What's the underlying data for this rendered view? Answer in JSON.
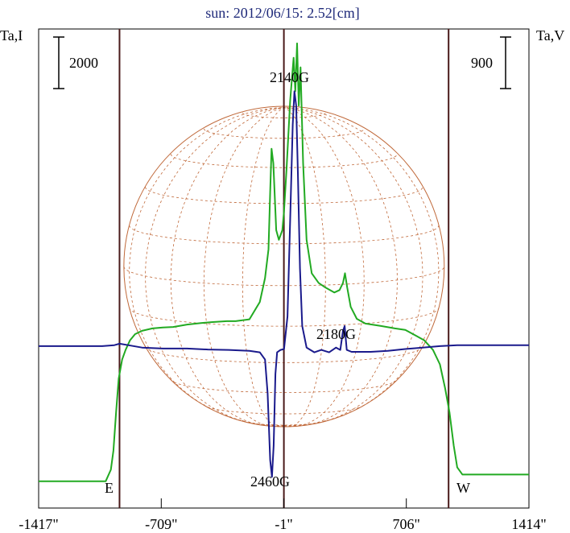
{
  "chart_data": {
    "type": "line",
    "title": "sun: 2012/06/15: 2.52[cm]",
    "left_axis_label": "Ta,I",
    "right_axis_label": "Ta,V",
    "xlim": [
      -1417,
      1414
    ],
    "x_ticks": [
      {
        "value": -1417,
        "label": "-1417\""
      },
      {
        "value": -709,
        "label": "-709\""
      },
      {
        "value": -1,
        "label": "-1\""
      },
      {
        "value": 706,
        "label": "706\""
      },
      {
        "value": 1414,
        "label": "1414\""
      }
    ],
    "scale_bar_left": "2000",
    "scale_bar_right": "900",
    "limb_markers": {
      "east": "E",
      "west": "W"
    },
    "vertical_lines_x": [
      -950,
      -1,
      950
    ],
    "solar_disk": {
      "radius_arcsec": 925,
      "grid": "heliographic-dashed"
    },
    "annotations": [
      {
        "label": "2140G",
        "x": 70
      },
      {
        "label": "2180G",
        "x": 340
      },
      {
        "label": "2460G",
        "x": -30
      }
    ],
    "series": [
      {
        "color": "#22aa22",
        "role": "intensity",
        "y_units": "plot-relative (0 = bottom, 1 = top)",
        "points": [
          [
            -1417,
            0.056
          ],
          [
            -1180,
            0.056
          ],
          [
            -1030,
            0.056
          ],
          [
            -1000,
            0.08
          ],
          [
            -985,
            0.12
          ],
          [
            -970,
            0.2
          ],
          [
            -955,
            0.27
          ],
          [
            -935,
            0.31
          ],
          [
            -915,
            0.33
          ],
          [
            -890,
            0.35
          ],
          [
            -860,
            0.363
          ],
          [
            -820,
            0.37
          ],
          [
            -760,
            0.375
          ],
          [
            -700,
            0.377
          ],
          [
            -640,
            0.378
          ],
          [
            -560,
            0.383
          ],
          [
            -480,
            0.386
          ],
          [
            -420,
            0.388
          ],
          [
            -330,
            0.39
          ],
          [
            -280,
            0.39
          ],
          [
            -200,
            0.394
          ],
          [
            -140,
            0.43
          ],
          [
            -110,
            0.48
          ],
          [
            -90,
            0.54
          ],
          [
            -80,
            0.66
          ],
          [
            -72,
            0.75
          ],
          [
            -62,
            0.72
          ],
          [
            -45,
            0.58
          ],
          [
            -30,
            0.56
          ],
          [
            -10,
            0.58
          ],
          [
            0,
            0.62
          ],
          [
            15,
            0.71
          ],
          [
            35,
            0.85
          ],
          [
            55,
            0.94
          ],
          [
            65,
            0.87
          ],
          [
            75,
            0.97
          ],
          [
            85,
            0.84
          ],
          [
            95,
            0.92
          ],
          [
            110,
            0.72
          ],
          [
            130,
            0.56
          ],
          [
            160,
            0.49
          ],
          [
            200,
            0.47
          ],
          [
            240,
            0.46
          ],
          [
            290,
            0.45
          ],
          [
            320,
            0.455
          ],
          [
            340,
            0.47
          ],
          [
            352,
            0.49
          ],
          [
            365,
            0.46
          ],
          [
            385,
            0.42
          ],
          [
            420,
            0.395
          ],
          [
            470,
            0.385
          ],
          [
            560,
            0.38
          ],
          [
            640,
            0.375
          ],
          [
            700,
            0.372
          ],
          [
            760,
            0.36
          ],
          [
            810,
            0.35
          ],
          [
            860,
            0.33
          ],
          [
            900,
            0.3
          ],
          [
            930,
            0.25
          ],
          [
            955,
            0.2
          ],
          [
            980,
            0.13
          ],
          [
            1000,
            0.085
          ],
          [
            1030,
            0.07
          ],
          [
            1200,
            0.07
          ],
          [
            1414,
            0.07
          ]
        ]
      },
      {
        "color": "#1a1a8c",
        "role": "circular polarization",
        "y_units": "plot-relative (0 = bottom, 1 = top)",
        "points": [
          [
            -1417,
            0.338
          ],
          [
            -1050,
            0.338
          ],
          [
            -980,
            0.34
          ],
          [
            -950,
            0.343
          ],
          [
            -900,
            0.34
          ],
          [
            -820,
            0.335
          ],
          [
            -700,
            0.333
          ],
          [
            -560,
            0.333
          ],
          [
            -440,
            0.331
          ],
          [
            -320,
            0.33
          ],
          [
            -200,
            0.328
          ],
          [
            -140,
            0.325
          ],
          [
            -110,
            0.31
          ],
          [
            -95,
            0.24
          ],
          [
            -80,
            0.1
          ],
          [
            -70,
            0.065
          ],
          [
            -60,
            0.13
          ],
          [
            -50,
            0.28
          ],
          [
            -40,
            0.325
          ],
          [
            -20,
            0.33
          ],
          [
            0,
            0.332
          ],
          [
            20,
            0.4
          ],
          [
            35,
            0.6
          ],
          [
            50,
            0.8
          ],
          [
            60,
            0.87
          ],
          [
            70,
            0.84
          ],
          [
            80,
            0.7
          ],
          [
            92,
            0.5
          ],
          [
            105,
            0.38
          ],
          [
            130,
            0.335
          ],
          [
            175,
            0.325
          ],
          [
            215,
            0.33
          ],
          [
            260,
            0.325
          ],
          [
            300,
            0.335
          ],
          [
            325,
            0.33
          ],
          [
            340,
            0.37
          ],
          [
            350,
            0.38
          ],
          [
            362,
            0.33
          ],
          [
            390,
            0.326
          ],
          [
            500,
            0.326
          ],
          [
            600,
            0.328
          ],
          [
            700,
            0.332
          ],
          [
            800,
            0.335
          ],
          [
            900,
            0.338
          ],
          [
            1000,
            0.34
          ],
          [
            1414,
            0.34
          ]
        ]
      }
    ]
  }
}
